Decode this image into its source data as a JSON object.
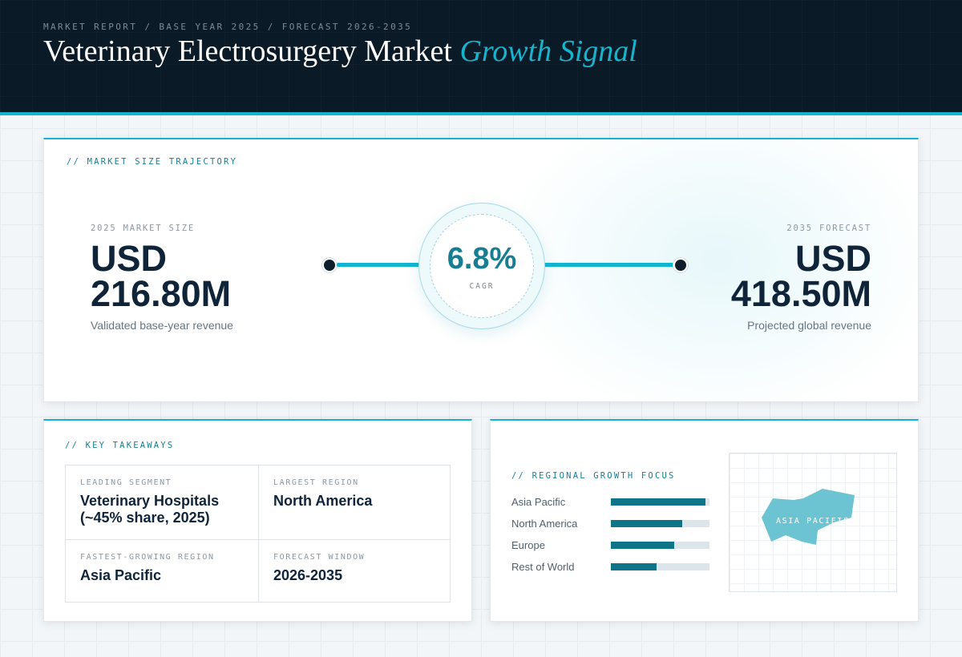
{
  "header": {
    "eyebrow": "MARKET REPORT / BASE YEAR 2025 / FORECAST 2026-2035",
    "title_main": "Veterinary Electrosurgery Market",
    "title_accent": "Growth Signal"
  },
  "trajectory": {
    "section_label": "// MARKET SIZE TRAJECTORY",
    "base": {
      "label": "2025 MARKET SIZE",
      "currency": "USD",
      "value": "216.80M",
      "description": "Validated base-year revenue"
    },
    "cagr": {
      "value": "6.8%",
      "label": "CAGR"
    },
    "forecast": {
      "label": "2035 FORECAST",
      "currency": "USD",
      "value": "418.50M",
      "description": "Projected global revenue"
    }
  },
  "takeaways": {
    "section_label": "// KEY TAKEAWAYS",
    "items": [
      {
        "label": "LEADING SEGMENT",
        "value": "Veterinary Hospitals (~45% share, 2025)"
      },
      {
        "label": "LARGEST REGION",
        "value": "North America"
      },
      {
        "label": "FASTEST-GROWING REGION",
        "value": "Asia Pacific"
      },
      {
        "label": "FORECAST WINDOW",
        "value": "2026-2035"
      }
    ]
  },
  "regional": {
    "section_label": "// REGIONAL GROWTH FOCUS",
    "bars": [
      {
        "label": "Asia Pacific",
        "fill_fraction": 0.96
      },
      {
        "label": "North America",
        "fill_fraction": 0.72
      },
      {
        "label": "Europe",
        "fill_fraction": 0.64
      },
      {
        "label": "Rest of World",
        "fill_fraction": 0.46
      }
    ],
    "map_label": "ASIA PACIFIC"
  },
  "colors": {
    "accent": "#12b5cf",
    "accent_dark": "#0e7487",
    "header_bg": "#0b1a27",
    "text_dark": "#0f2439"
  }
}
